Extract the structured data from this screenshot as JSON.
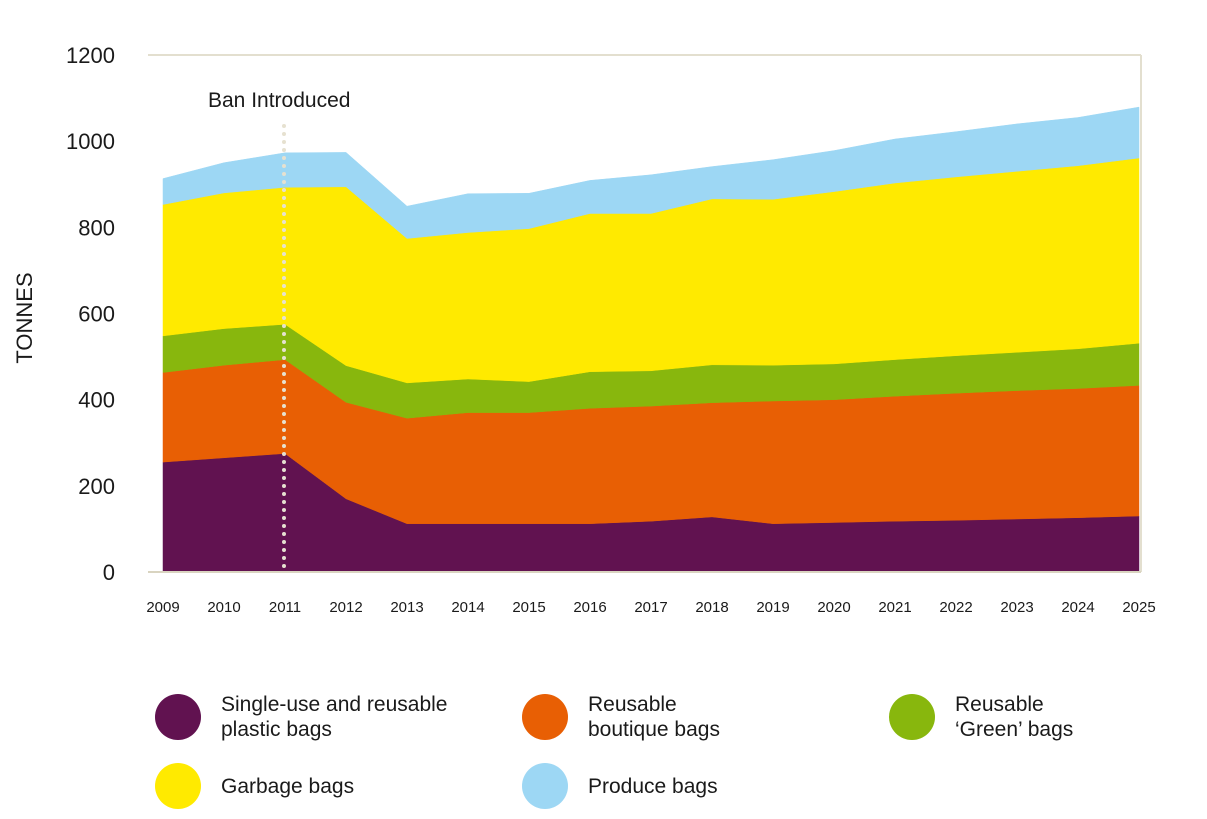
{
  "chart_data": {
    "type": "area",
    "stacked": true,
    "ylabel": "TONNES",
    "ylim": [
      0,
      1200
    ],
    "yticks": [
      0,
      200,
      400,
      600,
      800,
      1000,
      1200
    ],
    "categories": [
      "2009",
      "2010",
      "2011",
      "2012",
      "2013",
      "2014",
      "2015",
      "2016",
      "2017",
      "2018",
      "2019",
      "2020",
      "2021",
      "2022",
      "2023",
      "2024",
      "2025"
    ],
    "series": [
      {
        "name": "Single-use and reusable plastic bags",
        "color": "#611250",
        "values": [
          255,
          265,
          275,
          170,
          112,
          112,
          112,
          112,
          118,
          128,
          112,
          115,
          118,
          120,
          123,
          126,
          130
        ]
      },
      {
        "name": "Reusable boutique bags",
        "color": "#e85f04",
        "values": [
          208,
          215,
          218,
          224,
          245,
          258,
          258,
          268,
          267,
          265,
          285,
          285,
          290,
          295,
          298,
          300,
          303
        ]
      },
      {
        "name": "Reusable ‘Green’ bags",
        "color": "#88b70d",
        "values": [
          85,
          85,
          82,
          85,
          82,
          78,
          72,
          85,
          82,
          88,
          83,
          83,
          85,
          87,
          89,
          92,
          98
        ]
      },
      {
        "name": "Garbage bags",
        "color": "#ffea00",
        "values": [
          305,
          315,
          318,
          415,
          335,
          340,
          355,
          367,
          365,
          385,
          385,
          400,
          410,
          415,
          420,
          425,
          430
        ]
      },
      {
        "name": "Produce bags",
        "color": "#9dd7f4",
        "values": [
          60,
          70,
          80,
          80,
          75,
          90,
          82,
          77,
          90,
          75,
          92,
          95,
          102,
          105,
          110,
          112,
          118
        ]
      }
    ],
    "annotation": {
      "text": "Ban Introduced",
      "category": "2011"
    }
  },
  "legend": [
    {
      "line1": "Single-use and reusable",
      "line2": "plastic bags",
      "color": "#611250"
    },
    {
      "line1": "Reusable",
      "line2": "boutique bags",
      "color": "#e85f04"
    },
    {
      "line1": "Reusable",
      "line2": "‘Green’ bags",
      "color": "#88b70d"
    },
    {
      "line1": "Garbage bags",
      "line2": "",
      "color": "#ffea00"
    },
    {
      "line1": "Produce bags",
      "line2": "",
      "color": "#9dd7f4"
    }
  ]
}
